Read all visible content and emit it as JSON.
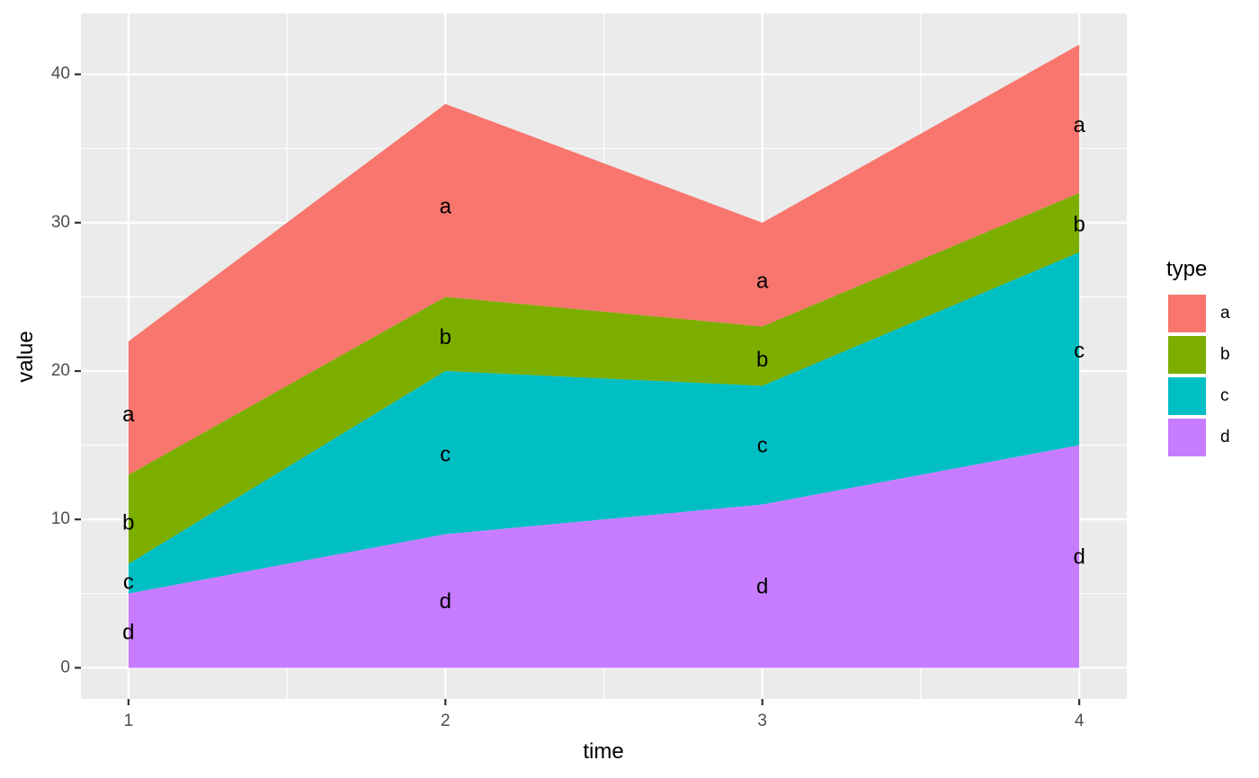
{
  "chart_data": {
    "type": "area",
    "stacked": true,
    "x": [
      1,
      2,
      3,
      4
    ],
    "xlabel": "time",
    "ylabel": "value",
    "xlim": [
      0.85,
      4.15
    ],
    "ylim": [
      -2.1,
      44.1
    ],
    "x_ticks": [
      1,
      2,
      3,
      4
    ],
    "y_ticks": [
      0,
      10,
      20,
      30,
      40
    ],
    "grid": true,
    "legend": {
      "title": "type",
      "placement": "right"
    },
    "series": [
      {
        "name": "a",
        "color": "#F8766D",
        "values": [
          9,
          13,
          7,
          10
        ],
        "label_y": [
          17,
          31,
          26,
          36.5
        ]
      },
      {
        "name": "b",
        "color": "#7CAE00",
        "values": [
          6,
          5,
          4,
          4
        ],
        "label_y": [
          9.7,
          22.2,
          20.7,
          29.8
        ]
      },
      {
        "name": "c",
        "color": "#00BFC4",
        "values": [
          2,
          11,
          8,
          13
        ],
        "label_y": [
          5.7,
          14.3,
          14.9,
          21.3
        ]
      },
      {
        "name": "d",
        "color": "#C77CFF",
        "values": [
          5,
          9,
          11,
          15
        ],
        "label_y": [
          2.3,
          4.4,
          5.4,
          7.4
        ]
      }
    ]
  }
}
